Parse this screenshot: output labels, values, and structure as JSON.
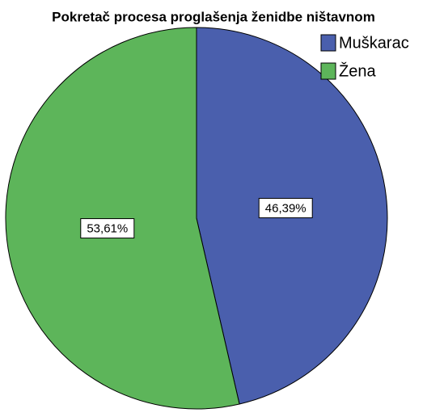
{
  "chart_data": {
    "type": "pie",
    "title": "Pokretač procesa proglašenja ženidbe ništavnom",
    "categories": [
      "Muškarac",
      "Žena"
    ],
    "values": [
      46.39,
      53.61
    ],
    "value_labels": [
      "46,39%",
      "53,61%"
    ],
    "colors": [
      "#4a5fad",
      "#5db55a"
    ],
    "legend": "top-right"
  }
}
